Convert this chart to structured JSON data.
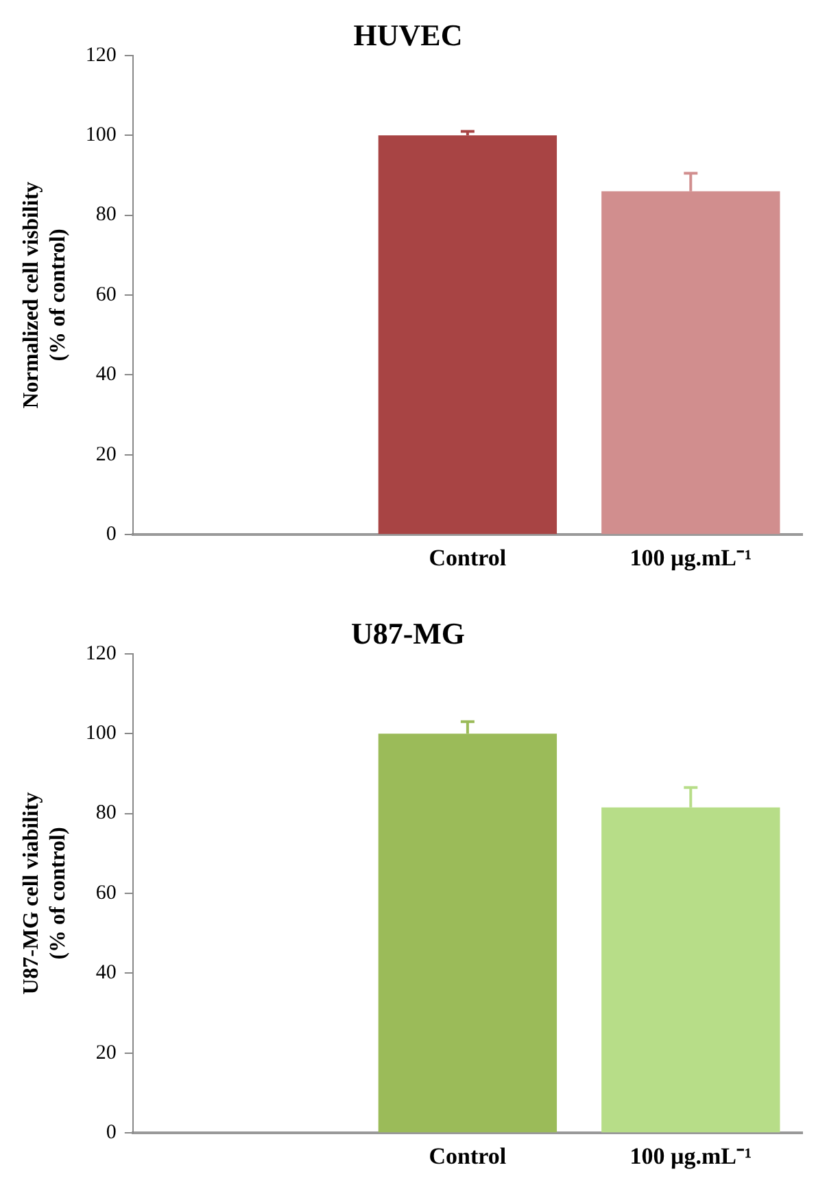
{
  "chart_data": [
    {
      "type": "bar",
      "title": "HUVEC",
      "ylabel": "Normalized cell visbility\n(% of control)",
      "categories": [
        null,
        "Control",
        "100 µg.mL⁻¹"
      ],
      "values": [
        null,
        100,
        86
      ],
      "colors": [
        "#a84444",
        "#a84444",
        "#d18e8e"
      ],
      "errors": [
        null,
        [
          100,
          101
        ],
        [
          86,
          90.5
        ]
      ],
      "ylim": [
        0,
        120
      ],
      "yticks": [
        0,
        20,
        40,
        60,
        80,
        100,
        120
      ],
      "grid": false,
      "legend": false
    },
    {
      "type": "bar",
      "title": "U87-MG",
      "ylabel": "U87-MG cell viability\n(% of control)",
      "categories": [
        null,
        "Control",
        "100 µg.mL⁻¹"
      ],
      "values": [
        null,
        100,
        81.5
      ],
      "colors": [
        "#9bbb59",
        "#9bbb59",
        "#b7dd88"
      ],
      "errors": [
        null,
        [
          100,
          103
        ],
        [
          81.5,
          86.5
        ]
      ],
      "ylim": [
        0,
        120
      ],
      "yticks": [
        0,
        20,
        40,
        60,
        80,
        100,
        120
      ],
      "grid": false,
      "legend": false
    }
  ]
}
